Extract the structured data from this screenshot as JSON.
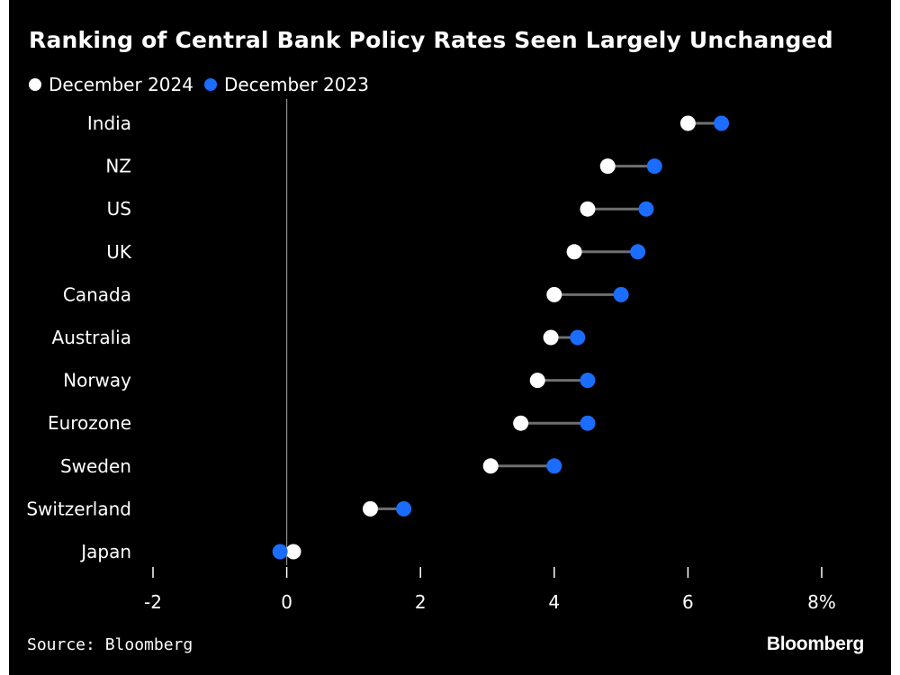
{
  "chart_data": {
    "type": "dot",
    "title": "Ranking of Central Bank Policy Rates Seen Largely Unchanged",
    "categories": [
      "India",
      "NZ",
      "US",
      "UK",
      "Canada",
      "Australia",
      "Norway",
      "Eurozone",
      "Sweden",
      "Switzerland",
      "Japan"
    ],
    "series": [
      {
        "name": "December 2024",
        "color": "#ffffff",
        "values": [
          6.0,
          4.8,
          4.5,
          4.3,
          4.0,
          3.95,
          3.75,
          3.5,
          3.05,
          1.25,
          0.1
        ]
      },
      {
        "name": "December 2023",
        "color": "#1a6dff",
        "values": [
          6.5,
          5.5,
          5.375,
          5.25,
          5.0,
          4.35,
          4.5,
          4.5,
          4.0,
          1.75,
          -0.1
        ]
      }
    ],
    "xlim": [
      -2,
      8
    ],
    "xticks": [
      -2,
      0,
      2,
      4,
      6,
      8
    ],
    "xtick_labels": [
      "-2",
      "0",
      "2",
      "4",
      "6",
      "8%"
    ],
    "zero_line": true,
    "legend_position": "top-left"
  },
  "source": "Source: Bloomberg",
  "brand": "Bloomberg"
}
